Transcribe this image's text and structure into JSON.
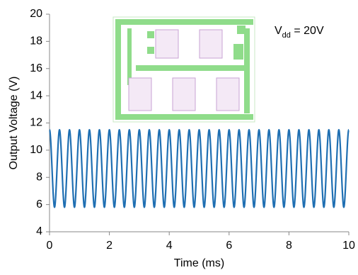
{
  "chart_data": {
    "type": "line",
    "x_label": "Time (ms)",
    "y_label": "Output  Voltage  (V)",
    "annotation": {
      "base": "V",
      "sub": "dd",
      "rest": " = 20V"
    },
    "xlim": [
      0,
      10
    ],
    "xticks": [
      0,
      2,
      4,
      6,
      8,
      10
    ],
    "ylim": [
      4,
      20
    ],
    "yticks": [
      4,
      6,
      8,
      10,
      12,
      14,
      16,
      18,
      20
    ],
    "x": [
      0,
      0.167,
      0.333,
      0.5,
      0.667,
      0.833,
      1,
      1.167,
      1.333,
      1.5,
      1.667,
      1.833,
      2,
      2.167,
      2.333,
      2.5,
      2.667,
      2.833,
      3,
      3.167,
      3.333,
      3.5,
      3.667,
      3.833,
      4,
      4.167,
      4.333,
      4.5,
      4.667,
      4.833,
      5,
      5.167,
      5.333,
      5.5,
      5.667,
      5.833,
      6,
      6.167,
      6.333,
      6.5,
      6.667,
      6.833,
      7,
      7.167,
      7.333,
      7.5,
      7.667,
      7.833,
      8,
      8.167,
      8.333,
      8.5,
      8.667,
      8.833,
      9,
      9.167,
      9.333,
      9.5,
      9.667,
      9.833,
      10
    ],
    "series": [
      {
        "color": "#1f6fb2",
        "values": [
          11.5,
          5.8,
          11.5,
          5.8,
          11.5,
          5.8,
          11.5,
          5.8,
          11.5,
          5.8,
          11.5,
          5.8,
          11.5,
          5.8,
          11.5,
          5.8,
          11.5,
          5.8,
          11.5,
          5.8,
          11.5,
          5.8,
          11.5,
          5.8,
          11.5,
          5.8,
          11.5,
          5.8,
          11.5,
          5.8,
          11.5,
          5.8,
          11.5,
          5.8,
          11.5,
          5.8,
          11.5,
          5.8,
          11.5,
          5.8,
          11.5,
          5.8,
          11.5,
          5.8,
          11.5,
          5.8,
          11.5,
          5.8,
          11.5,
          5.8,
          11.5,
          5.8,
          11.5,
          5.8,
          11.5,
          5.8,
          11.5,
          5.8,
          11.5,
          5.8,
          11.5
        ]
      }
    ]
  }
}
